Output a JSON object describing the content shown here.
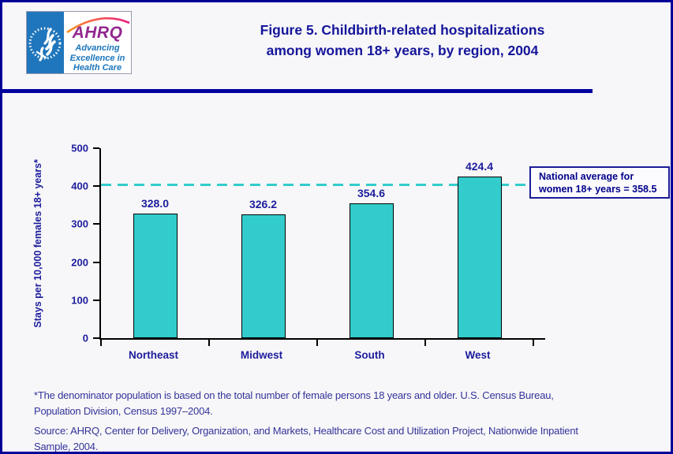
{
  "header": {
    "logo": {
      "seal_alt": "U.S. Department of Health and Human Services seal",
      "acronym": "AHRQ",
      "tagline_lines": [
        "Advancing",
        "Excellence in",
        "Health Care"
      ],
      "colors": {
        "seal_bg": "#2076BC",
        "acronym": "#92278F",
        "tagline": "#1B75BC",
        "arc": "#F7941E"
      }
    },
    "title_lines": [
      "Figure 5. Childbirth-related hospitalizations",
      "among women 18+ years, by region, 2004"
    ],
    "title_color": "#15159B"
  },
  "chart_data": {
    "type": "bar",
    "title": "Figure 5. Childbirth-related hospitalizations among women 18+ years, by region, 2004",
    "categories": [
      "Northeast",
      "Midwest",
      "South",
      "West"
    ],
    "values": [
      328.0,
      326.2,
      354.6,
      424.4
    ],
    "value_labels": [
      "328.0",
      "326.2",
      "354.6",
      "424.4"
    ],
    "xlabel": "",
    "ylabel": "Stays per 10,000 females 18+ years*",
    "ylim": [
      0,
      500
    ],
    "yticks": [
      0,
      100,
      200,
      300,
      400,
      500
    ],
    "ytick_labels": [
      "0",
      "100",
      "200",
      "300",
      "400",
      "500"
    ],
    "grid": false,
    "legend": "none",
    "bar_color": "#33CCCC",
    "bar_border_color": "#000000",
    "reference_line": {
      "value": 358.5,
      "style": "dashed",
      "color": "#33CCCC",
      "label_lines": [
        "National average for",
        "women 18+ years = 358.5"
      ],
      "label_text": "National average for women 18+ years = 358.5"
    }
  },
  "footnotes": {
    "denominator_lines": [
      "*The denominator population is based on the total number of female persons 18 years and older. U.S. Census Bureau,",
      "Population Division, Census 1997–2004."
    ],
    "source_lines": [
      "Source: AHRQ, Center for Delivery, Organization, and Markets, Healthcare Cost and Utilization Project, Nationwide Inpatient",
      "Sample, 2004."
    ]
  },
  "colors": {
    "page_border": "#000099",
    "header_rule": "#0000A0",
    "background": "#F7F7F9",
    "axis": "#000000",
    "label_navy": "#1C1C9C",
    "footnote": "#333399"
  }
}
